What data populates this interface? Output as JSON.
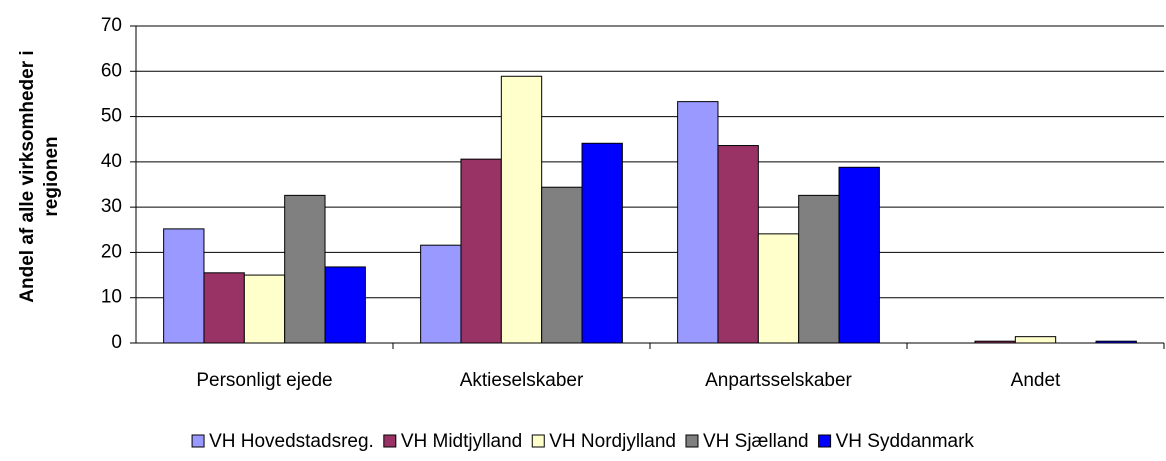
{
  "chart_data": {
    "type": "bar",
    "ylabel": [
      "Andel af alle virksomheder i",
      "regionen"
    ],
    "categories": [
      "Personligt ejede",
      "Aktieselskaber",
      "Anpartsselskaber",
      "Andet"
    ],
    "series": [
      {
        "name": "VH Hovedstadsreg.",
        "color": "#9999ff",
        "values": [
          25.2,
          21.6,
          53.3,
          0
        ]
      },
      {
        "name": "VH Midtjylland",
        "color": "#993366",
        "values": [
          15.5,
          40.6,
          43.6,
          0.4
        ]
      },
      {
        "name": "VH Nordjylland",
        "color": "#ffffcc",
        "values": [
          15.0,
          58.9,
          24.1,
          1.4
        ]
      },
      {
        "name": "VH Sjælland",
        "color": "#808080",
        "values": [
          32.6,
          34.4,
          32.6,
          0
        ]
      },
      {
        "name": "VH Syddanmark",
        "color": "#0000ff",
        "values": [
          16.8,
          44.1,
          38.8,
          0.4
        ]
      }
    ],
    "ylim": [
      0,
      70
    ],
    "yticks": [
      0,
      10,
      20,
      30,
      40,
      50,
      60,
      70
    ],
    "grid": true,
    "legend": "bottom"
  }
}
